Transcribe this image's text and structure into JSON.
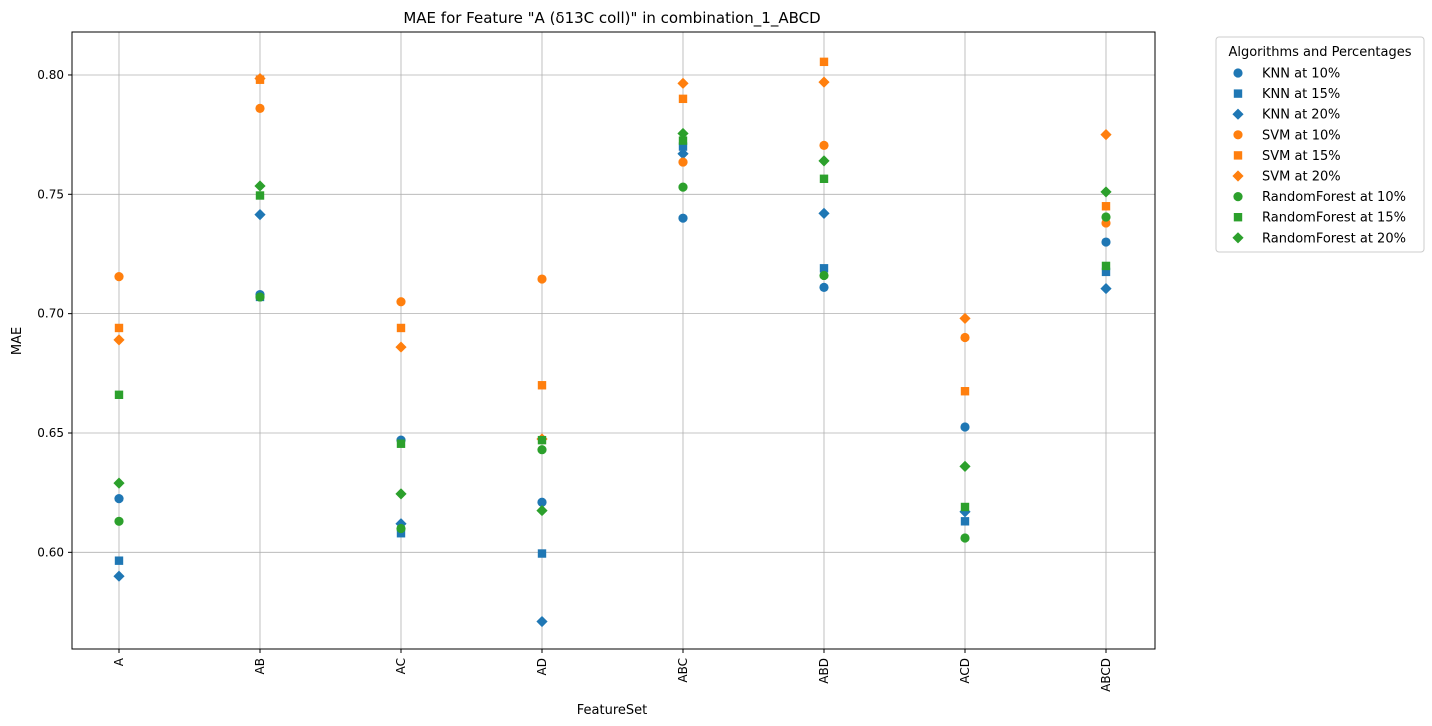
{
  "chart_data": {
    "type": "scatter",
    "title": "MAE for Feature \"A (δ13C coll)\" in combination_1_ABCD",
    "xlabel": "FeatureSet",
    "ylabel": "MAE",
    "categories": [
      "A",
      "AB",
      "AC",
      "AD",
      "ABC",
      "ABD",
      "ACD",
      "ABCD"
    ],
    "ylim": [
      0.5595,
      0.818
    ],
    "yticks": [
      0.6,
      0.65,
      0.7,
      0.75,
      0.8
    ],
    "ytick_labels": [
      "0.60",
      "0.65",
      "0.70",
      "0.75",
      "0.80"
    ],
    "grid": true,
    "legend_title": "Algorithms and Percentages",
    "legend_position": "outside-upper-right",
    "series": [
      {
        "name": "KNN at 10%",
        "color": "#1f77b4",
        "marker": "circle",
        "values": [
          0.6225,
          0.708,
          0.647,
          0.621,
          0.74,
          0.711,
          0.6525,
          0.73
        ]
      },
      {
        "name": "KNN at 15%",
        "color": "#1f77b4",
        "marker": "square",
        "values": [
          0.5965,
          0.707,
          0.608,
          0.5995,
          0.77,
          0.719,
          0.613,
          0.7175
        ]
      },
      {
        "name": "KNN at 20%",
        "color": "#1f77b4",
        "marker": "diamond",
        "values": [
          0.59,
          0.7415,
          0.612,
          0.571,
          0.767,
          0.742,
          0.617,
          0.7105
        ]
      },
      {
        "name": "SVM at 10%",
        "color": "#ff7f0e",
        "marker": "circle",
        "values": [
          0.7155,
          0.786,
          0.705,
          0.7145,
          0.7635,
          0.7705,
          0.69,
          0.738
        ]
      },
      {
        "name": "SVM at 15%",
        "color": "#ff7f0e",
        "marker": "square",
        "values": [
          0.694,
          0.798,
          0.694,
          0.67,
          0.79,
          0.8055,
          0.6675,
          0.745
        ]
      },
      {
        "name": "SVM at 20%",
        "color": "#ff7f0e",
        "marker": "diamond",
        "values": [
          0.689,
          0.7985,
          0.686,
          0.6475,
          0.7965,
          0.797,
          0.698,
          0.775
        ]
      },
      {
        "name": "RandomForest at 10%",
        "color": "#2ca02c",
        "marker": "circle",
        "values": [
          0.613,
          0.707,
          0.61,
          0.643,
          0.753,
          0.716,
          0.606,
          0.7405
        ]
      },
      {
        "name": "RandomForest at 15%",
        "color": "#2ca02c",
        "marker": "square",
        "values": [
          0.666,
          0.7495,
          0.6455,
          0.647,
          0.7725,
          0.7565,
          0.619,
          0.72
        ]
      },
      {
        "name": "RandomForest at 20%",
        "color": "#2ca02c",
        "marker": "diamond",
        "values": [
          0.629,
          0.7535,
          0.6245,
          0.6175,
          0.7755,
          0.764,
          0.636,
          0.751
        ]
      }
    ]
  }
}
